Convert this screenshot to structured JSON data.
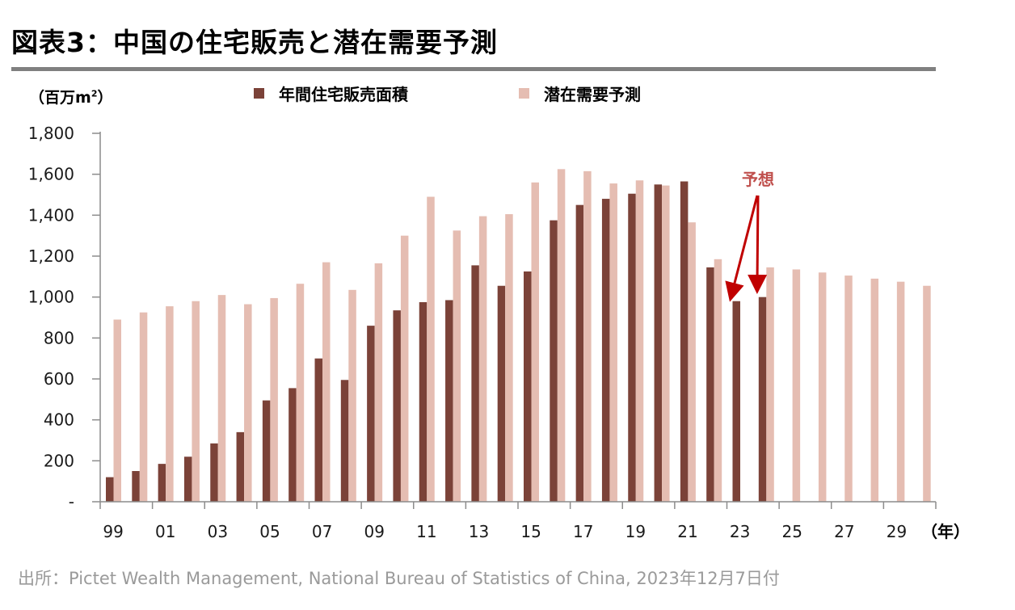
{
  "header": {
    "title": "図表3：中国の住宅販売と潜在需要予測",
    "source": "出所：Pictet Wealth Management, National Bureau of Statistics of China, 2023年12月7日付"
  },
  "chart_data": {
    "type": "bar",
    "title": "図表3：中国の住宅販売と潜在需要予測",
    "ylabel_prefix": "（百万m",
    "ylabel_sup": "2",
    "ylabel_suffix": "）",
    "xlabel": "（年）",
    "ylim": [
      0,
      1800
    ],
    "yticks": [
      0,
      200,
      400,
      600,
      800,
      1000,
      1200,
      1400,
      1600,
      1800
    ],
    "ytick_labels": [
      "-",
      "200",
      "400",
      "600",
      "800",
      "1,000",
      "1,200",
      "1,400",
      "1,600",
      "1,800"
    ],
    "categories": [
      "99",
      "00",
      "01",
      "02",
      "03",
      "04",
      "05",
      "06",
      "07",
      "08",
      "09",
      "10",
      "11",
      "12",
      "13",
      "14",
      "15",
      "16",
      "17",
      "18",
      "19",
      "20",
      "21",
      "22",
      "23",
      "24",
      "25",
      "26",
      "27",
      "28",
      "29",
      "30"
    ],
    "xtick_labels": [
      "99",
      "01",
      "03",
      "05",
      "07",
      "09",
      "11",
      "13",
      "15",
      "17",
      "19",
      "21",
      "23",
      "25",
      "27",
      "29"
    ],
    "legend_position": "top",
    "grid": false,
    "annotation": "予想",
    "series": [
      {
        "name": "年間住宅販売面積",
        "color": "#7b4238",
        "values": [
          120,
          150,
          185,
          220,
          285,
          340,
          495,
          555,
          700,
          595,
          860,
          935,
          975,
          985,
          1155,
          1055,
          1125,
          1375,
          1450,
          1480,
          1505,
          1550,
          1565,
          1145,
          980,
          1000,
          null,
          null,
          null,
          null,
          null,
          null
        ]
      },
      {
        "name": "潜在需要予測",
        "color": "#e5bdb2",
        "values": [
          890,
          925,
          955,
          980,
          1010,
          965,
          995,
          1065,
          1170,
          1035,
          1165,
          1300,
          1490,
          1325,
          1395,
          1405,
          1560,
          1625,
          1615,
          1555,
          1570,
          1545,
          1365,
          1185,
          null,
          1145,
          1135,
          1120,
          1105,
          1090,
          1075,
          1055
        ]
      }
    ]
  }
}
